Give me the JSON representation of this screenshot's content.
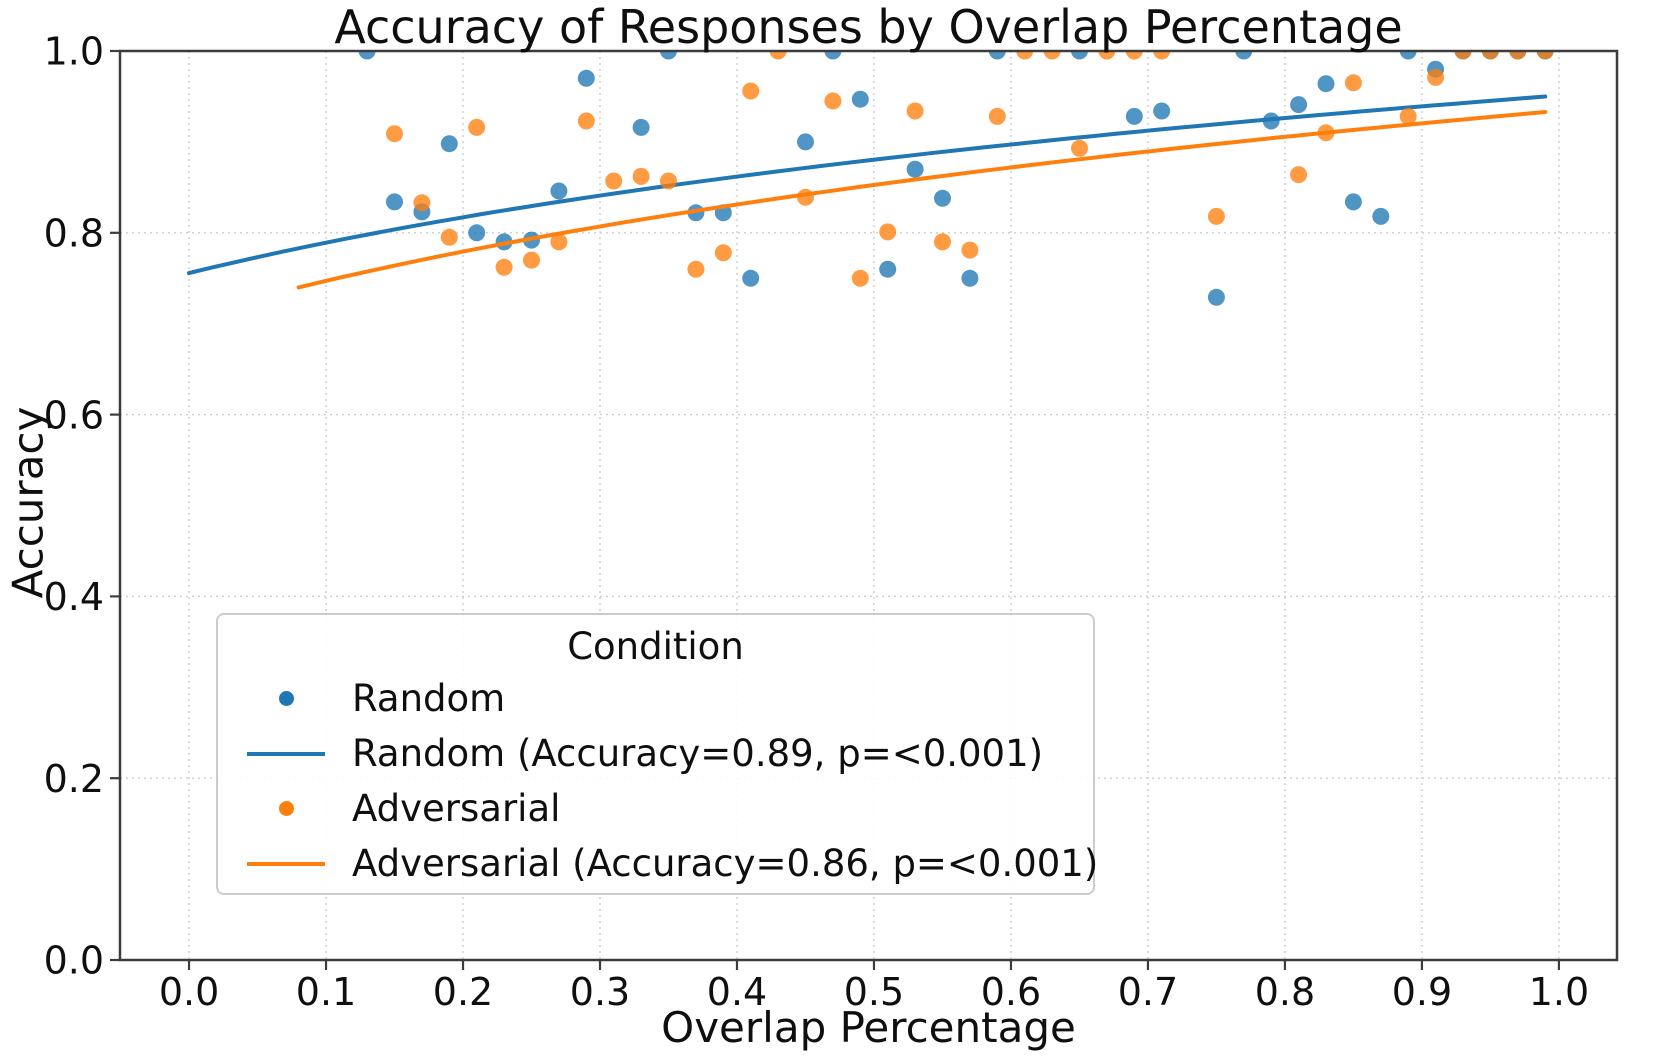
{
  "title": "Accuracy of Responses by Overlap Percentage",
  "x_axis": {
    "label": "Overlap Percentage",
    "ticks": [
      {
        "value": 0.0,
        "label": "0.0"
      },
      {
        "value": 0.1,
        "label": "0.1"
      },
      {
        "value": 0.2,
        "label": "0.2"
      },
      {
        "value": 0.3,
        "label": "0.3"
      },
      {
        "value": 0.4,
        "label": "0.4"
      },
      {
        "value": 0.5,
        "label": "0.5"
      },
      {
        "value": 0.6,
        "label": "0.6"
      },
      {
        "value": 0.7,
        "label": "0.7"
      },
      {
        "value": 0.8,
        "label": "0.8"
      },
      {
        "value": 0.9,
        "label": "0.9"
      },
      {
        "value": 1.0,
        "label": "1.0"
      }
    ],
    "min": -0.0504,
    "max": 1.0424
  },
  "y_axis": {
    "label": "Accuracy",
    "ticks": [
      {
        "value": 0.0,
        "label": "0.0"
      },
      {
        "value": 0.2,
        "label": "0.2"
      },
      {
        "value": 0.4,
        "label": "0.4"
      },
      {
        "value": 0.6,
        "label": "0.6"
      },
      {
        "value": 0.8,
        "label": "0.8"
      },
      {
        "value": 1.0,
        "label": "1.0"
      }
    ],
    "min": 0.0,
    "max": 1.0
  },
  "legend": {
    "title": "Condition",
    "entries": [
      {
        "type": "dot",
        "color": "#1f77b4",
        "label": "Random"
      },
      {
        "type": "line",
        "color": "#1f77b4",
        "label": "Random (Accuracy=0.89, p=<0.001)"
      },
      {
        "type": "dot",
        "color": "#ff7f0e",
        "label": "Adversarial"
      },
      {
        "type": "line",
        "color": "#ff7f0e",
        "label": "Adversarial (Accuracy=0.86, p=<0.001)"
      }
    ]
  },
  "colors": {
    "random": "#1f77b4",
    "adversarial": "#ff7f0e",
    "grid": "#cdcdcd",
    "spine": "#3c3c3c",
    "text": "#0f0f0f"
  },
  "chart_data": {
    "type": "scatter",
    "title": "Accuracy of Responses by Overlap Percentage",
    "xlabel": "Overlap Percentage",
    "ylabel": "Accuracy",
    "xlim": [
      -0.05,
      1.04
    ],
    "ylim": [
      0.0,
      1.0
    ],
    "grid": true,
    "legend_position": "lower left",
    "series": [
      {
        "name": "Random",
        "kind": "scatter",
        "color": "#1f77b4",
        "opacity": 0.78,
        "points": [
          [
            0.13,
            1.0
          ],
          [
            0.15,
            0.834
          ],
          [
            0.17,
            0.823
          ],
          [
            0.19,
            0.898
          ],
          [
            0.21,
            0.8
          ],
          [
            0.23,
            0.79
          ],
          [
            0.25,
            0.792
          ],
          [
            0.27,
            0.846
          ],
          [
            0.29,
            0.97
          ],
          [
            0.33,
            0.916
          ],
          [
            0.35,
            1.0
          ],
          [
            0.37,
            0.822
          ],
          [
            0.39,
            0.822
          ],
          [
            0.41,
            0.75
          ],
          [
            0.45,
            0.9
          ],
          [
            0.47,
            1.0
          ],
          [
            0.49,
            0.947
          ],
          [
            0.51,
            0.76
          ],
          [
            0.53,
            0.87
          ],
          [
            0.55,
            0.838
          ],
          [
            0.57,
            0.75
          ],
          [
            0.59,
            1.0
          ],
          [
            0.65,
            1.0
          ],
          [
            0.69,
            0.928
          ],
          [
            0.71,
            0.934
          ],
          [
            0.75,
            0.729
          ],
          [
            0.77,
            1.0
          ],
          [
            0.79,
            0.923
          ],
          [
            0.81,
            0.941
          ],
          [
            0.83,
            0.964
          ],
          [
            0.85,
            0.834
          ],
          [
            0.87,
            0.818
          ],
          [
            0.89,
            1.0
          ],
          [
            0.91,
            0.98
          ],
          [
            0.93,
            1.0
          ],
          [
            0.95,
            1.0
          ],
          [
            0.97,
            1.0
          ],
          [
            0.99,
            1.0
          ]
        ]
      },
      {
        "name": "Random (Accuracy=0.89, p=<0.001)",
        "kind": "trend",
        "color": "#1f77b4",
        "fit": {
          "form": "a+b*ln(x+c)",
          "a": 0.889,
          "b": 0.167,
          "c": 0.45,
          "x_start": 0.0,
          "x_end": 0.99
        }
      },
      {
        "name": "Adversarial",
        "kind": "scatter",
        "color": "#ff7f0e",
        "opacity": 0.78,
        "points": [
          [
            0.15,
            0.909
          ],
          [
            0.17,
            0.833
          ],
          [
            0.19,
            0.795
          ],
          [
            0.21,
            0.916
          ],
          [
            0.23,
            0.762
          ],
          [
            0.25,
            0.77
          ],
          [
            0.27,
            0.79
          ],
          [
            0.29,
            0.923
          ],
          [
            0.31,
            0.857
          ],
          [
            0.33,
            0.862
          ],
          [
            0.35,
            0.857
          ],
          [
            0.37,
            0.76
          ],
          [
            0.39,
            0.778
          ],
          [
            0.41,
            0.956
          ],
          [
            0.43,
            1.0
          ],
          [
            0.45,
            0.839
          ],
          [
            0.47,
            0.945
          ],
          [
            0.49,
            0.75
          ],
          [
            0.51,
            0.801
          ],
          [
            0.53,
            0.934
          ],
          [
            0.55,
            0.79
          ],
          [
            0.57,
            0.781
          ],
          [
            0.59,
            0.928
          ],
          [
            0.61,
            1.0
          ],
          [
            0.63,
            1.0
          ],
          [
            0.65,
            0.893
          ],
          [
            0.67,
            1.0
          ],
          [
            0.69,
            1.0
          ],
          [
            0.71,
            1.0
          ],
          [
            0.75,
            0.818
          ],
          [
            0.81,
            0.864
          ],
          [
            0.83,
            0.91
          ],
          [
            0.85,
            0.965
          ],
          [
            0.89,
            0.928
          ],
          [
            0.91,
            0.971
          ],
          [
            0.93,
            1.0
          ],
          [
            0.95,
            1.0
          ],
          [
            0.97,
            1.0
          ],
          [
            0.99,
            1.0
          ]
        ]
      },
      {
        "name": "Adversarial (Accuracy=0.86, p=<0.001)",
        "kind": "trend",
        "color": "#ff7f0e",
        "fit": {
          "form": "a+b*ln(x+c)",
          "a": 0.8625,
          "b": 0.193,
          "c": 0.45,
          "x_start": 0.08,
          "x_end": 0.99
        }
      }
    ]
  }
}
